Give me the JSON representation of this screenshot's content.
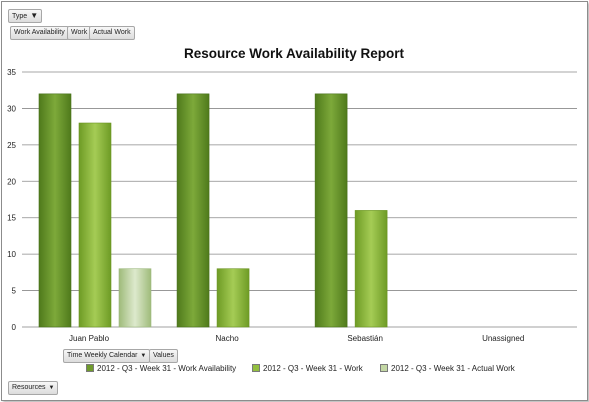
{
  "pivot": {
    "type_label": "Type",
    "fields": [
      "Work Availability",
      "Work",
      "Actual Work"
    ],
    "time_label": "Time Weekly Calendar",
    "values_label": "Values",
    "resources_label": "Resources"
  },
  "colors": {
    "work_availability": "#6f9a2c",
    "work": "#93bf3f",
    "actual_work": "#c3d7a4"
  },
  "chart_data": {
    "type": "bar",
    "title": "Resource Work Availability Report",
    "categories": [
      "Juan Pablo",
      "Nacho",
      "Sebastián",
      "Unassigned"
    ],
    "series": [
      {
        "name": "2012 - Q3 - Week 31 - Work Availability",
        "values": [
          32,
          32,
          32,
          null
        ]
      },
      {
        "name": "2012 - Q3 - Week 31 - Work",
        "values": [
          28,
          8,
          16,
          null
        ]
      },
      {
        "name": "2012 - Q3 - Week 31 - Actual Work",
        "values": [
          8,
          null,
          null,
          null
        ]
      }
    ],
    "ylim": [
      0,
      35
    ],
    "yticks": [
      0,
      5,
      10,
      15,
      20,
      25,
      30,
      35
    ],
    "grid": true,
    "legend": "bottom"
  }
}
